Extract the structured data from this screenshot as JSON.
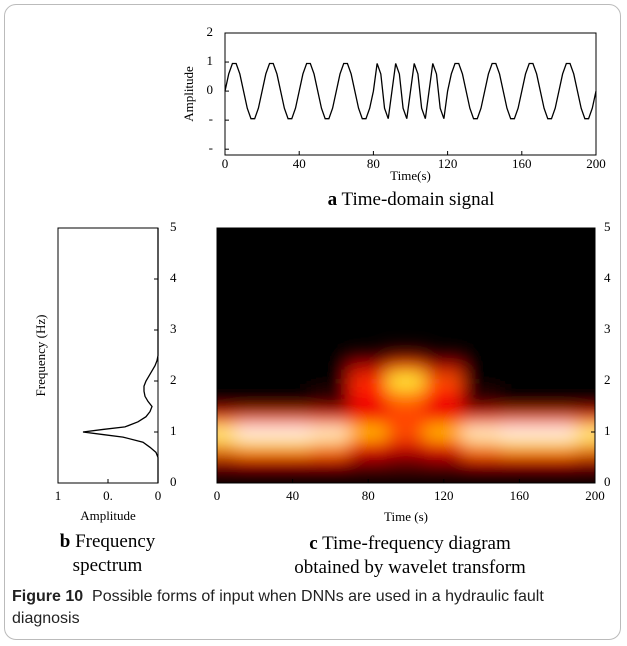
{
  "chart_data": [
    {
      "type": "line",
      "xlabel": "Time(s)",
      "ylabel": "Amplitude",
      "caption_label": "a",
      "caption": "Time-domain signal",
      "color": "#000000",
      "x": [
        0,
        2,
        4,
        6,
        8,
        10,
        12,
        14,
        16,
        18,
        20,
        22,
        24,
        26,
        28,
        30,
        32,
        34,
        36,
        38,
        40,
        42,
        44,
        46,
        48,
        50,
        52,
        54,
        56,
        58,
        60,
        62,
        64,
        66,
        68,
        70,
        72,
        74,
        76,
        78,
        80,
        82,
        84,
        86,
        88,
        90,
        92,
        94,
        96,
        98,
        100,
        102,
        104,
        106,
        108,
        110,
        112,
        114,
        116,
        118,
        120,
        122,
        124,
        126,
        128,
        130,
        132,
        134,
        136,
        138,
        140,
        142,
        144,
        146,
        148,
        150,
        152,
        154,
        156,
        158,
        160,
        162,
        164,
        166,
        168,
        170,
        172,
        174,
        176,
        178,
        180,
        182,
        184,
        186,
        188,
        190,
        192,
        194,
        196,
        198,
        200
      ],
      "values": [
        0,
        0.59,
        0.95,
        0.95,
        0.59,
        0,
        -0.59,
        -0.95,
        -0.95,
        -0.59,
        0,
        0.59,
        0.95,
        0.95,
        0.59,
        0,
        -0.59,
        -0.95,
        -0.95,
        -0.59,
        0,
        0.59,
        0.95,
        0.95,
        0.59,
        0,
        -0.59,
        -0.95,
        -0.95,
        -0.59,
        0,
        0.59,
        0.95,
        0.95,
        0.59,
        0,
        -0.59,
        -0.95,
        -0.95,
        -0.59,
        0,
        0.95,
        0.59,
        -0.59,
        -0.95,
        0,
        0.95,
        0.59,
        -0.59,
        -0.95,
        0,
        0.95,
        0.59,
        -0.59,
        -0.95,
        0,
        0.95,
        0.59,
        -0.59,
        -0.95,
        0,
        0.59,
        0.95,
        0.95,
        0.59,
        0,
        -0.59,
        -0.95,
        -0.95,
        -0.59,
        0,
        0.59,
        0.95,
        0.95,
        0.59,
        0,
        -0.59,
        -0.95,
        -0.95,
        -0.59,
        0,
        0.59,
        0.95,
        0.95,
        0.59,
        0,
        -0.59,
        -0.95,
        -0.95,
        -0.59,
        0,
        0.59,
        0.95,
        0.95,
        0.59,
        0,
        -0.59,
        -0.95,
        -0.95,
        -0.59,
        0
      ],
      "xlim": [
        0,
        200
      ],
      "xticks": [
        0,
        40,
        80,
        120,
        160,
        200
      ],
      "ylim": [
        -2.2,
        2
      ],
      "yticks": [
        2,
        1,
        0,
        {
          "value": -1,
          "label": "-"
        },
        {
          "value": -2,
          "label": "-"
        }
      ]
    },
    {
      "type": "line",
      "orientation": "horizontal",
      "xlabel": "Frequency (Hz)",
      "ylabel": "Amplitude",
      "caption_label": "b",
      "caption": "Frequency spectrum",
      "color": "#000000",
      "x": [
        0,
        0.5,
        0.6,
        0.7,
        0.8,
        0.9,
        0.95,
        1.0,
        1.05,
        1.1,
        1.2,
        1.3,
        1.4,
        1.5,
        1.6,
        1.7,
        1.8,
        1.9,
        2.0,
        2.1,
        2.2,
        2.3,
        2.4,
        2.5,
        3,
        4,
        5
      ],
      "values": [
        0,
        0,
        0.02,
        0.08,
        0.15,
        0.35,
        0.55,
        0.75,
        0.55,
        0.33,
        0.2,
        0.12,
        0.08,
        0.06,
        0.1,
        0.13,
        0.14,
        0.14,
        0.12,
        0.09,
        0.06,
        0.03,
        0.01,
        0,
        0,
        0,
        0
      ],
      "xlim": [
        0,
        5
      ],
      "xticks": [
        0,
        1,
        2,
        3,
        4,
        5
      ],
      "ylim": [
        1,
        0
      ],
      "yticks": [
        1,
        {
          "value": 0.5,
          "label": "0."
        },
        0
      ]
    },
    {
      "type": "heatmap",
      "xlabel": "Time (s)",
      "caption_label": "c",
      "caption": "Time-frequency diagram obtained by wavelet transform",
      "colormap": "hot",
      "x": [
        0,
        20,
        40,
        60,
        80,
        100,
        120,
        140,
        160,
        180,
        200
      ],
      "y": [
        0.25,
        0.5,
        0.75,
        1.0,
        1.25,
        1.5,
        1.75,
        2.0,
        2.25,
        2.5
      ],
      "z": [
        [
          0.1,
          0.1,
          0.1,
          0.1,
          0.1,
          0.1,
          0.1,
          0.1,
          0.1,
          0.1,
          0.1
        ],
        [
          0.25,
          0.3,
          0.3,
          0.3,
          0.2,
          0.15,
          0.2,
          0.3,
          0.3,
          0.3,
          0.25
        ],
        [
          0.55,
          0.6,
          0.6,
          0.55,
          0.35,
          0.3,
          0.35,
          0.55,
          0.6,
          0.6,
          0.55
        ],
        [
          0.85,
          1,
          1,
          0.95,
          0.6,
          0.45,
          0.6,
          0.95,
          1,
          1,
          0.85
        ],
        [
          0.4,
          0.45,
          0.45,
          0.4,
          0.35,
          0.4,
          0.35,
          0.4,
          0.45,
          0.45,
          0.4
        ],
        [
          0.05,
          0.05,
          0.05,
          0.1,
          0.3,
          0.45,
          0.3,
          0.1,
          0.05,
          0.05,
          0.05
        ],
        [
          0,
          0,
          0,
          0.05,
          0.35,
          0.5,
          0.35,
          0.05,
          0,
          0,
          0
        ],
        [
          0,
          0,
          0,
          0,
          0.4,
          0.75,
          0.45,
          0,
          0,
          0,
          0
        ],
        [
          0,
          0,
          0,
          0,
          0.25,
          0.45,
          0.25,
          0,
          0,
          0,
          0
        ],
        [
          0,
          0,
          0,
          0,
          0.05,
          0.15,
          0.05,
          0,
          0,
          0,
          0
        ]
      ],
      "xlim": [
        0,
        200
      ],
      "xticks": [
        0,
        40,
        80,
        120,
        160,
        200
      ],
      "ylim": [
        0,
        5
      ],
      "yticks": [
        0,
        1,
        2,
        3,
        4,
        5
      ]
    }
  ],
  "figure_caption": {
    "label": "Figure 10",
    "text": "Possible forms of input when DNNs are used in a hydraulic fault diagnosis"
  }
}
